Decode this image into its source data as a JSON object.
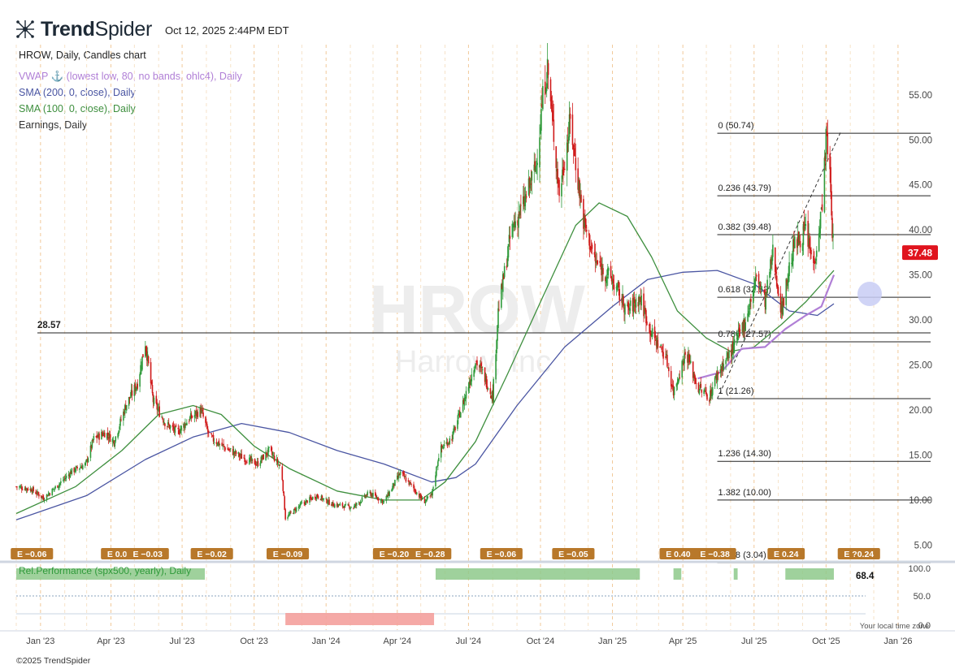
{
  "header": {
    "brand_bold": "Trend",
    "brand_light": "Spider",
    "timestamp": "Oct 12, 2025 2:44PM EDT",
    "chart_title": "HROW, Daily, Candles chart",
    "logo_icon": "trendspider-logo-icon"
  },
  "indicators": {
    "vwap": "VWAP ⚓ (lowest low, 80, no bands, ohlc4), Daily",
    "sma200": "SMA (200, 0, close), Daily",
    "sma100": "SMA (100, 0, close), Daily",
    "earnings": "Earnings, Daily"
  },
  "watermark": {
    "ticker": "HROW",
    "name": "Harrow, Inc"
  },
  "footer": {
    "copyright": "©2025 TrendSpider",
    "local_time_note": "Your local time zone"
  },
  "colors": {
    "up": "#2f9a3a",
    "down": "#d01a1a",
    "sma100": "#3e8f3e",
    "sma200": "#4a55a2",
    "vwap": "#b07fd6",
    "earnings": "#b8782a",
    "price_tag": "#e0141e"
  },
  "chart_data": {
    "type": "candlestick",
    "ticker": "HROW",
    "timeframe": "Daily",
    "x_range": [
      "2022-12-01",
      "2026-01-25"
    ],
    "y_range": [
      3.5,
      58.5
    ],
    "y_ticks": [
      55,
      50,
      45,
      40,
      35,
      30,
      25,
      20,
      15,
      10,
      5
    ],
    "y_tick_labels": [
      "55.00",
      "50.00",
      "45.00",
      "40.00",
      "35.00",
      "30.00",
      "25.00",
      "20.00",
      "15.00",
      "10.00",
      "5.00"
    ],
    "x_ticks": [
      {
        "date": "2023-01-01",
        "label": "Jan '23"
      },
      {
        "date": "2023-04-01",
        "label": "Apr '23"
      },
      {
        "date": "2023-07-01",
        "label": "Jul '23"
      },
      {
        "date": "2023-10-01",
        "label": "Oct '23"
      },
      {
        "date": "2024-01-01",
        "label": "Jan '24"
      },
      {
        "date": "2024-04-01",
        "label": "Apr '24"
      },
      {
        "date": "2024-07-01",
        "label": "Jul '24"
      },
      {
        "date": "2024-10-01",
        "label": "Oct '24"
      },
      {
        "date": "2025-01-01",
        "label": "Jan '25"
      },
      {
        "date": "2025-04-01",
        "label": "Apr '25"
      },
      {
        "date": "2025-07-01",
        "label": "Jul '25"
      },
      {
        "date": "2025-10-01",
        "label": "Oct '25"
      },
      {
        "date": "2026-01-01",
        "label": "Jan '26"
      }
    ],
    "price_path": [
      [
        "2022-12-01",
        11.5
      ],
      [
        "2022-12-20",
        11.2
      ],
      [
        "2023-01-05",
        10.2
      ],
      [
        "2023-01-25",
        11.8
      ],
      [
        "2023-02-10",
        13.2
      ],
      [
        "2023-02-28",
        14.0
      ],
      [
        "2023-03-10",
        16.8
      ],
      [
        "2023-03-25",
        17.5
      ],
      [
        "2023-04-05",
        16.5
      ],
      [
        "2023-04-20",
        20.5
      ],
      [
        "2023-05-05",
        23.0
      ],
      [
        "2023-05-15",
        27.5
      ],
      [
        "2023-05-25",
        21.0
      ],
      [
        "2023-06-10",
        18.5
      ],
      [
        "2023-06-25",
        17.5
      ],
      [
        "2023-07-10",
        19.0
      ],
      [
        "2023-07-25",
        20.0
      ],
      [
        "2023-08-05",
        17.0
      ],
      [
        "2023-08-25",
        15.8
      ],
      [
        "2023-09-15",
        14.8
      ],
      [
        "2023-10-05",
        14.0
      ],
      [
        "2023-10-20",
        15.5
      ],
      [
        "2023-11-05",
        13.5
      ],
      [
        "2023-11-10",
        8.0
      ],
      [
        "2023-11-30",
        9.5
      ],
      [
        "2023-12-20",
        10.5
      ],
      [
        "2024-01-10",
        9.5
      ],
      [
        "2024-02-05",
        9.2
      ],
      [
        "2024-02-25",
        10.8
      ],
      [
        "2024-03-15",
        9.8
      ],
      [
        "2024-04-05",
        13.0
      ],
      [
        "2024-04-20",
        11.5
      ],
      [
        "2024-05-05",
        9.8
      ],
      [
        "2024-05-15",
        10.5
      ],
      [
        "2024-05-25",
        15.5
      ],
      [
        "2024-06-10",
        17.0
      ],
      [
        "2024-06-25",
        21.0
      ],
      [
        "2024-07-10",
        25.5
      ],
      [
        "2024-07-20",
        24.0
      ],
      [
        "2024-08-01",
        21.5
      ],
      [
        "2024-08-08",
        31.0
      ],
      [
        "2024-08-25",
        40.0
      ],
      [
        "2024-09-10",
        43.0
      ],
      [
        "2024-09-25",
        47.0
      ],
      [
        "2024-10-05",
        55.5
      ],
      [
        "2024-10-10",
        58.0
      ],
      [
        "2024-10-25",
        44.0
      ],
      [
        "2024-11-08",
        52.0
      ],
      [
        "2024-11-25",
        41.0
      ],
      [
        "2024-12-10",
        36.5
      ],
      [
        "2024-12-31",
        34.5
      ],
      [
        "2025-01-20",
        31.0
      ],
      [
        "2025-02-05",
        32.5
      ],
      [
        "2025-02-20",
        28.5
      ],
      [
        "2025-03-10",
        26.0
      ],
      [
        "2025-03-20",
        22.0
      ],
      [
        "2025-04-05",
        26.5
      ],
      [
        "2025-04-20",
        22.5
      ],
      [
        "2025-05-05",
        21.5
      ],
      [
        "2025-05-15",
        24.0
      ],
      [
        "2025-06-05",
        27.0
      ],
      [
        "2025-06-20",
        30.0
      ],
      [
        "2025-07-05",
        35.0
      ],
      [
        "2025-07-15",
        32.0
      ],
      [
        "2025-07-25",
        37.5
      ],
      [
        "2025-08-05",
        31.0
      ],
      [
        "2025-08-20",
        38.0
      ],
      [
        "2025-09-05",
        40.0
      ],
      [
        "2025-09-15",
        36.0
      ],
      [
        "2025-09-25",
        42.0
      ],
      [
        "2025-10-01",
        50.0
      ],
      [
        "2025-10-05",
        48.5
      ],
      [
        "2025-10-08",
        41.5
      ],
      [
        "2025-10-11",
        37.48
      ]
    ],
    "sma100_path": [
      [
        "2022-12-01",
        8.5
      ],
      [
        "2023-02-15",
        11.5
      ],
      [
        "2023-04-15",
        15.5
      ],
      [
        "2023-06-01",
        19.5
      ],
      [
        "2023-07-15",
        20.5
      ],
      [
        "2023-08-20",
        19.5
      ],
      [
        "2023-10-01",
        16.0
      ],
      [
        "2023-11-15",
        13.5
      ],
      [
        "2024-01-15",
        11.0
      ],
      [
        "2024-03-15",
        10.0
      ],
      [
        "2024-05-01",
        10.0
      ],
      [
        "2024-06-01",
        12.0
      ],
      [
        "2024-07-10",
        16.5
      ],
      [
        "2024-08-20",
        24.0
      ],
      [
        "2024-10-01",
        32.0
      ],
      [
        "2024-11-15",
        40.5
      ],
      [
        "2024-12-15",
        43.0
      ],
      [
        "2025-01-20",
        41.5
      ],
      [
        "2025-02-20",
        37.0
      ],
      [
        "2025-03-25",
        31.0
      ],
      [
        "2025-05-01",
        28.0
      ],
      [
        "2025-06-01",
        26.5
      ],
      [
        "2025-07-01",
        27.0
      ],
      [
        "2025-08-05",
        29.5
      ],
      [
        "2025-09-05",
        32.0
      ],
      [
        "2025-10-11",
        35.5
      ]
    ],
    "sma200_path": [
      [
        "2022-12-01",
        7.8
      ],
      [
        "2023-03-01",
        10.5
      ],
      [
        "2023-05-15",
        14.5
      ],
      [
        "2023-07-15",
        17.0
      ],
      [
        "2023-09-15",
        18.5
      ],
      [
        "2023-11-15",
        17.5
      ],
      [
        "2024-01-15",
        15.5
      ],
      [
        "2024-03-15",
        14.0
      ],
      [
        "2024-05-15",
        12.0
      ],
      [
        "2024-06-15",
        12.5
      ],
      [
        "2024-07-10",
        14.0
      ],
      [
        "2024-09-01",
        20.5
      ],
      [
        "2024-11-01",
        27.0
      ],
      [
        "2025-01-01",
        31.5
      ],
      [
        "2025-02-15",
        34.5
      ],
      [
        "2025-04-01",
        35.3
      ],
      [
        "2025-05-15",
        35.5
      ],
      [
        "2025-07-01",
        34.0
      ],
      [
        "2025-08-15",
        31.0
      ],
      [
        "2025-09-20",
        30.5
      ],
      [
        "2025-10-11",
        31.8
      ]
    ],
    "vwap_path": [
      [
        "2025-04-20",
        23.5
      ],
      [
        "2025-05-20",
        24.2
      ],
      [
        "2025-06-15",
        26.8
      ],
      [
        "2025-07-15",
        27.0
      ],
      [
        "2025-08-10",
        29.0
      ],
      [
        "2025-09-05",
        30.5
      ],
      [
        "2025-09-25",
        31.5
      ],
      [
        "2025-10-11",
        35.0
      ]
    ],
    "horizontal_lines": [
      {
        "label": "28.57",
        "value": 28.57,
        "start": "2022-12-28"
      }
    ],
    "fibonacci": {
      "start": "2025-05-15",
      "end": "2026-01-08",
      "levels": [
        {
          "label": "0 (50.74)",
          "value": 50.74
        },
        {
          "label": "0.236 (43.79)",
          "value": 43.79
        },
        {
          "label": "0.382 (39.48)",
          "value": 39.48
        },
        {
          "label": "0.618 (32.52)",
          "value": 32.52
        },
        {
          "label": "0.786 (27.57)",
          "value": 27.57
        },
        {
          "label": "1 (21.26)",
          "value": 21.26
        },
        {
          "label": "1.236 (14.30)",
          "value": 14.3
        },
        {
          "label": "1.382 (10.00)",
          "value": 10.0
        },
        {
          "label": "1.618 (3.04)",
          "value": 3.04
        }
      ]
    },
    "last_price": {
      "value": 37.48,
      "label": "37.48"
    },
    "earnings": [
      {
        "date": "2022-12-21",
        "label": "E −0.06"
      },
      {
        "date": "2023-04-12",
        "label": "E 0.07"
      },
      {
        "date": "2023-05-18",
        "label": "E −0.03"
      },
      {
        "date": "2023-08-08",
        "label": "E −0.02"
      },
      {
        "date": "2023-11-13",
        "label": "E −0.09"
      },
      {
        "date": "2024-03-28",
        "label": "E −0.20"
      },
      {
        "date": "2024-05-13",
        "label": "E −0.28"
      },
      {
        "date": "2024-08-12",
        "label": "E −0.06"
      },
      {
        "date": "2024-11-12",
        "label": "E −0.05"
      },
      {
        "date": "2025-03-26",
        "label": "E 0.40"
      },
      {
        "date": "2025-05-12",
        "label": "E −0.38"
      },
      {
        "date": "2025-08-11",
        "label": "E 0.24"
      },
      {
        "date": "2025-11-12",
        "label": "E ?0.24"
      }
    ],
    "rel_performance": {
      "label": "Rel.Performance (spx500, yearly), Daily",
      "value_label": "68.4",
      "value": 68.4,
      "y_ticks": [
        "100.0",
        "50.0",
        "0.0"
      ],
      "y_range": [
        0,
        100
      ],
      "segments": [
        {
          "start": "2022-12-01",
          "end": "2023-07-30",
          "value": 72,
          "positive": true
        },
        {
          "start": "2023-11-10",
          "end": "2024-05-18",
          "value": 40,
          "positive": false
        },
        {
          "start": "2024-05-20",
          "end": "2025-02-05",
          "value": 78,
          "positive": true
        },
        {
          "start": "2025-03-20",
          "end": "2025-03-30",
          "value": 45,
          "positive": true
        },
        {
          "start": "2025-06-05",
          "end": "2025-06-10",
          "value": 30,
          "positive": true
        },
        {
          "start": "2025-08-10",
          "end": "2025-10-11",
          "value": 50,
          "positive": true
        }
      ]
    }
  }
}
